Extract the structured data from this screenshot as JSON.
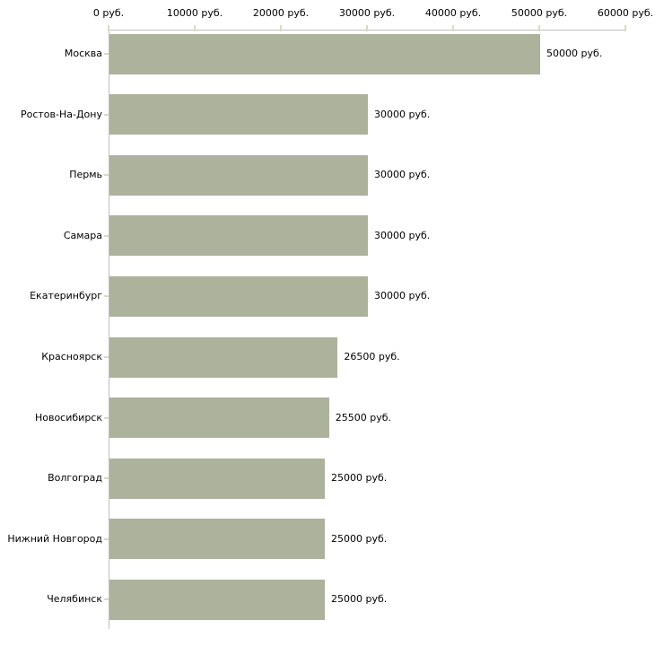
{
  "chart_data": {
    "type": "bar",
    "orientation": "horizontal",
    "title": "",
    "categories": [
      "Москва",
      "Ростов-На-Дону",
      "Пермь",
      "Самара",
      "Екатеринбург",
      "Красноярск",
      "Новосибирск",
      "Волгоград",
      "Нижний Новгород",
      "Челябинск"
    ],
    "values": [
      50000,
      30000,
      30000,
      30000,
      30000,
      26500,
      25500,
      25000,
      25000,
      25000
    ],
    "value_labels": [
      "50000 руб.",
      "30000 руб.",
      "30000 руб.",
      "30000 руб.",
      "30000 руб.",
      "26500 руб.",
      "25500 руб.",
      "25000 руб.",
      "25000 руб.",
      "25000 руб."
    ],
    "unit": "руб.",
    "x_axis": {
      "position": "top",
      "min": 0,
      "max": 60000,
      "tick_values": [
        0,
        10000,
        20000,
        30000,
        40000,
        50000,
        60000
      ],
      "tick_labels": [
        "0 руб.",
        "10000 руб.",
        "20000 руб.",
        "30000 руб.",
        "40000 руб.",
        "50000 руб.",
        "60000 руб."
      ]
    },
    "grid": false,
    "legend": false,
    "colors": {
      "bar": "#adb29c",
      "axis": "#bfbfbf",
      "tick": "#d8dbc0",
      "text": "#000000",
      "background": "#ffffff"
    }
  }
}
